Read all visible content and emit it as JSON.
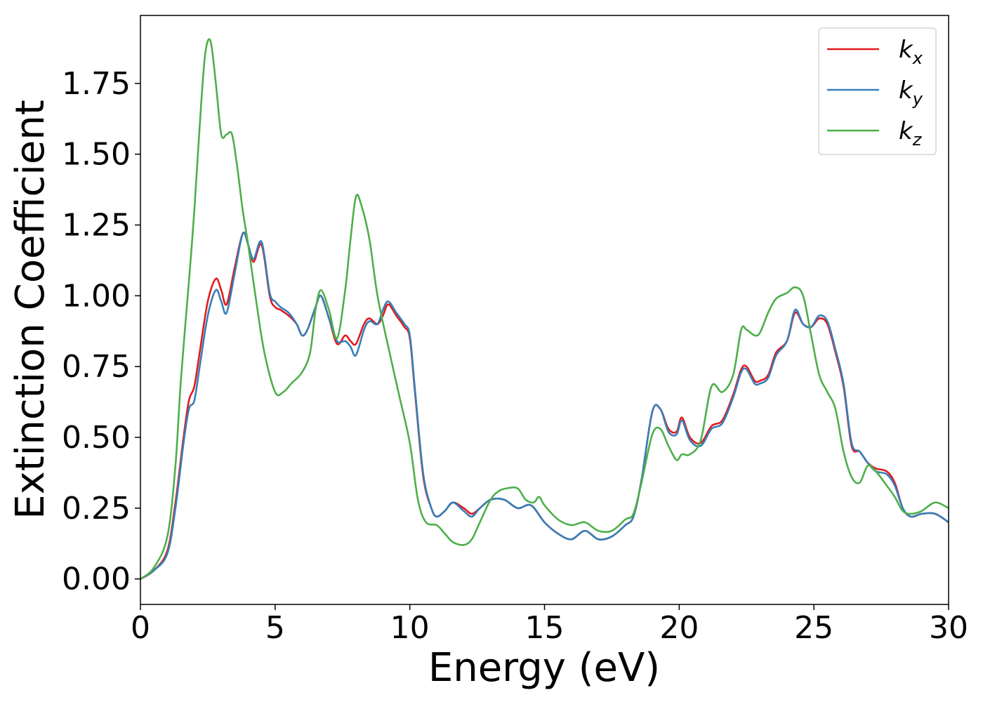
{
  "chart_data": {
    "type": "line",
    "title": "",
    "xlabel": "Energy (eV)",
    "ylabel": "Extinction Coefficient",
    "xlim": [
      0,
      30
    ],
    "ylim": [
      -0.09,
      1.99
    ],
    "xticks": [
      0,
      5,
      10,
      15,
      20,
      25,
      30
    ],
    "xtick_labels": [
      "0",
      "5",
      "10",
      "15",
      "20",
      "25",
      "30"
    ],
    "yticks": [
      0.0,
      0.25,
      0.5,
      0.75,
      1.0,
      1.25,
      1.5,
      1.75
    ],
    "ytick_labels": [
      "0.00",
      "0.25",
      "0.50",
      "0.75",
      "1.00",
      "1.25",
      "1.50",
      "1.75"
    ],
    "grid": false,
    "legend_position": "top-right",
    "series": [
      {
        "name": "k_x",
        "label_base": "k",
        "label_sub": "x",
        "color": "#e41a1c",
        "x": [
          0,
          0.5,
          1.0,
          1.3,
          1.6,
          1.8,
          2.0,
          2.2,
          2.5,
          2.8,
          3.0,
          3.2,
          3.5,
          3.8,
          4.0,
          4.2,
          4.5,
          4.8,
          5.0,
          5.2,
          5.5,
          5.8,
          6.0,
          6.2,
          6.5,
          6.7,
          7.0,
          7.3,
          7.6,
          7.8,
          8.0,
          8.3,
          8.5,
          8.8,
          9.0,
          9.2,
          9.5,
          9.8,
          10.0,
          10.2,
          10.5,
          10.8,
          11.0,
          11.3,
          11.6,
          12.0,
          12.3,
          12.6,
          13.0,
          13.5,
          14.0,
          14.5,
          15.0,
          15.5,
          16.0,
          16.5,
          17.0,
          17.5,
          18.0,
          18.3,
          18.6,
          19.0,
          19.3,
          19.6,
          19.9,
          20.1,
          20.4,
          20.8,
          21.2,
          21.6,
          22.0,
          22.3,
          22.5,
          22.8,
          23.0,
          23.3,
          23.6,
          24.0,
          24.3,
          24.6,
          24.9,
          25.2,
          25.5,
          25.8,
          26.1,
          26.4,
          26.7,
          27.0,
          27.3,
          27.7,
          28.0,
          28.3,
          28.6,
          29.0,
          29.5,
          30.0
        ],
        "values": [
          0.0,
          0.03,
          0.1,
          0.27,
          0.5,
          0.63,
          0.68,
          0.8,
          0.98,
          1.06,
          1.02,
          0.97,
          1.1,
          1.22,
          1.18,
          1.12,
          1.18,
          1.0,
          0.96,
          0.95,
          0.93,
          0.9,
          0.86,
          0.88,
          0.96,
          1.0,
          0.92,
          0.83,
          0.86,
          0.84,
          0.83,
          0.9,
          0.92,
          0.9,
          0.93,
          0.97,
          0.93,
          0.89,
          0.85,
          0.65,
          0.36,
          0.25,
          0.22,
          0.24,
          0.27,
          0.25,
          0.23,
          0.25,
          0.28,
          0.28,
          0.25,
          0.26,
          0.2,
          0.16,
          0.14,
          0.17,
          0.14,
          0.15,
          0.19,
          0.22,
          0.35,
          0.59,
          0.6,
          0.53,
          0.52,
          0.57,
          0.5,
          0.48,
          0.54,
          0.56,
          0.65,
          0.74,
          0.75,
          0.7,
          0.7,
          0.72,
          0.8,
          0.84,
          0.94,
          0.9,
          0.89,
          0.92,
          0.9,
          0.8,
          0.68,
          0.47,
          0.45,
          0.41,
          0.39,
          0.38,
          0.34,
          0.25,
          0.22,
          0.23,
          0.23,
          0.2
        ]
      },
      {
        "name": "k_y",
        "label_base": "k",
        "label_sub": "y",
        "color": "#377eb8",
        "x": [
          0,
          0.5,
          1.0,
          1.3,
          1.6,
          1.8,
          2.0,
          2.2,
          2.5,
          2.8,
          3.0,
          3.2,
          3.5,
          3.8,
          4.0,
          4.2,
          4.5,
          4.8,
          5.0,
          5.2,
          5.5,
          5.8,
          6.0,
          6.2,
          6.5,
          6.7,
          7.0,
          7.3,
          7.6,
          7.8,
          8.0,
          8.3,
          8.5,
          8.8,
          9.0,
          9.2,
          9.5,
          9.8,
          10.0,
          10.2,
          10.5,
          10.8,
          11.0,
          11.3,
          11.6,
          12.0,
          12.3,
          12.6,
          13.0,
          13.5,
          14.0,
          14.5,
          15.0,
          15.5,
          16.0,
          16.5,
          17.0,
          17.5,
          18.0,
          18.3,
          18.6,
          19.0,
          19.3,
          19.6,
          19.9,
          20.1,
          20.4,
          20.8,
          21.2,
          21.6,
          22.0,
          22.3,
          22.5,
          22.8,
          23.0,
          23.3,
          23.6,
          24.0,
          24.3,
          24.6,
          24.9,
          25.2,
          25.5,
          25.8,
          26.1,
          26.4,
          26.7,
          27.0,
          27.3,
          27.7,
          28.0,
          28.3,
          28.6,
          29.0,
          29.5,
          30.0
        ],
        "values": [
          0.0,
          0.03,
          0.09,
          0.25,
          0.48,
          0.6,
          0.63,
          0.75,
          0.93,
          1.02,
          0.98,
          0.94,
          1.08,
          1.22,
          1.18,
          1.13,
          1.19,
          1.01,
          0.98,
          0.96,
          0.94,
          0.9,
          0.86,
          0.88,
          0.96,
          1.0,
          0.92,
          0.84,
          0.84,
          0.82,
          0.79,
          0.88,
          0.91,
          0.9,
          0.95,
          0.98,
          0.94,
          0.9,
          0.86,
          0.66,
          0.37,
          0.25,
          0.22,
          0.24,
          0.27,
          0.24,
          0.22,
          0.25,
          0.28,
          0.28,
          0.25,
          0.26,
          0.2,
          0.16,
          0.14,
          0.17,
          0.14,
          0.15,
          0.19,
          0.22,
          0.35,
          0.59,
          0.6,
          0.52,
          0.51,
          0.56,
          0.49,
          0.47,
          0.53,
          0.55,
          0.64,
          0.73,
          0.74,
          0.69,
          0.69,
          0.71,
          0.79,
          0.84,
          0.95,
          0.9,
          0.89,
          0.93,
          0.91,
          0.81,
          0.69,
          0.48,
          0.45,
          0.41,
          0.38,
          0.37,
          0.33,
          0.25,
          0.22,
          0.23,
          0.23,
          0.2
        ]
      },
      {
        "name": "k_z",
        "label_base": "k",
        "label_sub": "z",
        "color": "#4daf4a",
        "x": [
          0,
          0.5,
          1.0,
          1.3,
          1.5,
          1.8,
          2.0,
          2.2,
          2.4,
          2.6,
          2.8,
          3.0,
          3.2,
          3.4,
          3.6,
          3.8,
          4.0,
          4.3,
          4.6,
          5.0,
          5.3,
          5.6,
          6.0,
          6.3,
          6.5,
          6.7,
          7.0,
          7.3,
          7.6,
          7.8,
          8.0,
          8.2,
          8.5,
          8.8,
          9.2,
          9.6,
          10.0,
          10.3,
          10.6,
          11.0,
          11.3,
          11.6,
          12.0,
          12.3,
          12.6,
          13.0,
          13.3,
          13.6,
          14.0,
          14.3,
          14.6,
          14.8,
          15.0,
          15.5,
          16.0,
          16.5,
          17.0,
          17.5,
          18.0,
          18.3,
          18.6,
          19.0,
          19.3,
          19.6,
          19.9,
          20.1,
          20.4,
          20.8,
          21.2,
          21.6,
          22.0,
          22.3,
          22.5,
          22.8,
          23.0,
          23.3,
          23.6,
          24.0,
          24.3,
          24.6,
          24.9,
          25.2,
          25.5,
          25.8,
          26.1,
          26.4,
          26.7,
          27.0,
          27.3,
          27.7,
          28.0,
          28.3,
          28.6,
          29.0,
          29.5,
          30.0
        ],
        "values": [
          0.0,
          0.04,
          0.15,
          0.4,
          0.7,
          1.05,
          1.3,
          1.6,
          1.85,
          1.9,
          1.75,
          1.57,
          1.57,
          1.57,
          1.45,
          1.3,
          1.18,
          0.98,
          0.8,
          0.66,
          0.66,
          0.69,
          0.73,
          0.8,
          0.95,
          1.02,
          0.95,
          0.85,
          1.02,
          1.2,
          1.35,
          1.32,
          1.2,
          1.0,
          0.82,
          0.65,
          0.48,
          0.28,
          0.2,
          0.19,
          0.16,
          0.13,
          0.12,
          0.14,
          0.2,
          0.28,
          0.31,
          0.32,
          0.32,
          0.28,
          0.27,
          0.29,
          0.26,
          0.21,
          0.19,
          0.2,
          0.17,
          0.17,
          0.21,
          0.23,
          0.34,
          0.51,
          0.53,
          0.47,
          0.42,
          0.44,
          0.44,
          0.49,
          0.68,
          0.66,
          0.72,
          0.88,
          0.88,
          0.86,
          0.87,
          0.94,
          0.99,
          1.01,
          1.03,
          1.0,
          0.86,
          0.72,
          0.66,
          0.6,
          0.45,
          0.36,
          0.34,
          0.4,
          0.38,
          0.33,
          0.29,
          0.24,
          0.23,
          0.24,
          0.27,
          0.25
        ]
      }
    ]
  }
}
